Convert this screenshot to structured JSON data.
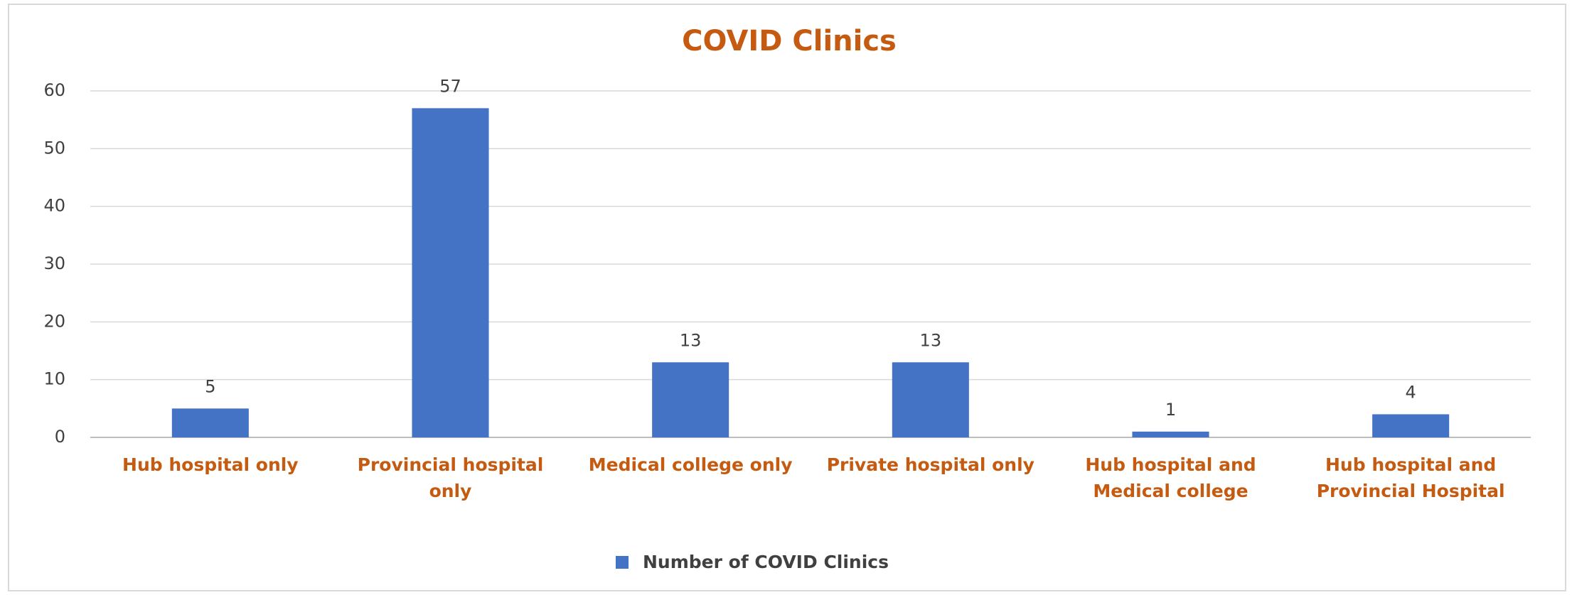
{
  "chart_data": {
    "type": "bar",
    "title": "COVID Clinics",
    "categories": [
      "Hub hospital only",
      "Provincial hospital only",
      "Medical college only",
      "Private hospital only",
      "Hub hospital and Medical college",
      "Hub hospital and Provincial Hospital"
    ],
    "series": [
      {
        "name": "Number of COVID Clinics",
        "color": "#4472c4",
        "values": [
          5,
          57,
          13,
          13,
          1,
          4
        ]
      }
    ],
    "ylim": [
      0,
      60
    ],
    "yticks": [
      0,
      10,
      20,
      30,
      40,
      50,
      60
    ],
    "grid": true,
    "legend": "bottom"
  }
}
